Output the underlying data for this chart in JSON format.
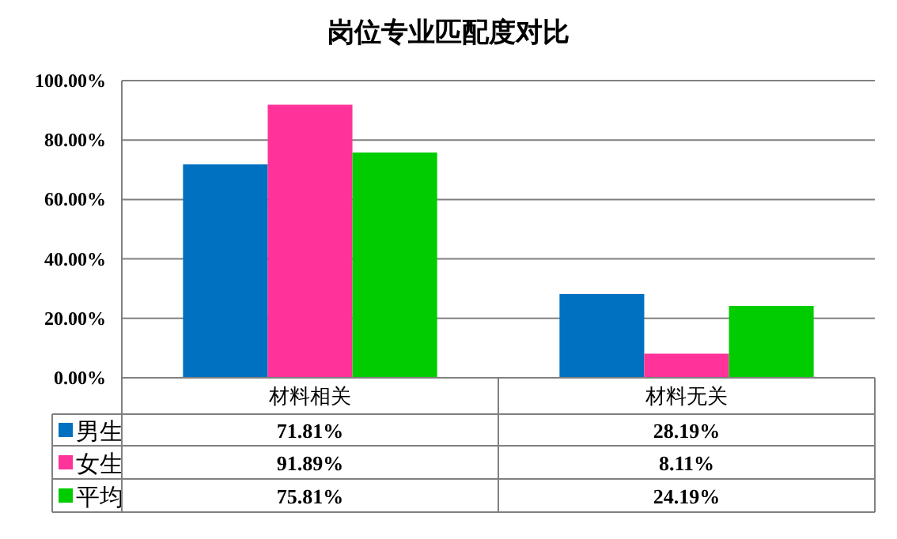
{
  "chart_data": {
    "type": "bar",
    "title": "岗位专业匹配度对比",
    "categories": [
      "材料相关",
      "材料无关"
    ],
    "series": [
      {
        "name": "男生",
        "color": "#0070c0",
        "values": [
          71.81,
          28.19
        ],
        "value_labels": [
          "71.81%",
          "28.19%"
        ]
      },
      {
        "name": "女生",
        "color": "#ff3399",
        "values": [
          91.89,
          8.11
        ],
        "value_labels": [
          "91.89%",
          "8.11%"
        ]
      },
      {
        "name": "平均",
        "color": "#00cc00",
        "values": [
          75.81,
          24.19
        ],
        "value_labels": [
          "75.81%",
          "24.19%"
        ]
      }
    ],
    "ylim": [
      0,
      100
    ],
    "yticks": [
      {
        "value": 0,
        "label": "0.00%"
      },
      {
        "value": 20,
        "label": "20.00%"
      },
      {
        "value": 40,
        "label": "40.00%"
      },
      {
        "value": 60,
        "label": "60.00%"
      },
      {
        "value": 80,
        "label": "80.00%"
      },
      {
        "value": 100,
        "label": "100.00%"
      }
    ],
    "grid": "y",
    "legend": "bottom"
  }
}
